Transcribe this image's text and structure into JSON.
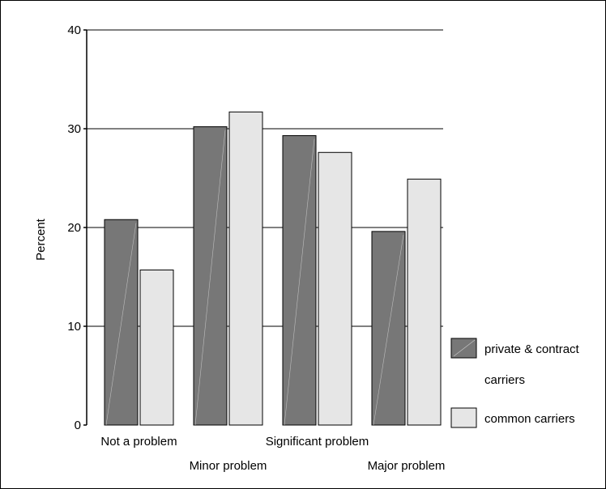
{
  "chart_data": {
    "type": "bar",
    "categories": [
      "Not a problem",
      "Minor problem",
      "Significant problem",
      "Major problem"
    ],
    "series": [
      {
        "name": "private & contract carriers",
        "values": [
          20.8,
          30.2,
          29.3,
          19.6
        ],
        "color": "#777777"
      },
      {
        "name": "common carriers",
        "values": [
          15.7,
          31.7,
          27.6,
          24.9
        ],
        "color": "#e6e6e6"
      }
    ],
    "ylabel": "Percent",
    "xlabel": "",
    "ylim": [
      0,
      40
    ],
    "yticks": [
      0,
      10,
      20,
      30,
      40
    ],
    "grid": true,
    "legend": "right",
    "legend_labels": {
      "s1_line1": "private & contract",
      "s1_line2": "carriers",
      "s2": "common carriers"
    }
  }
}
